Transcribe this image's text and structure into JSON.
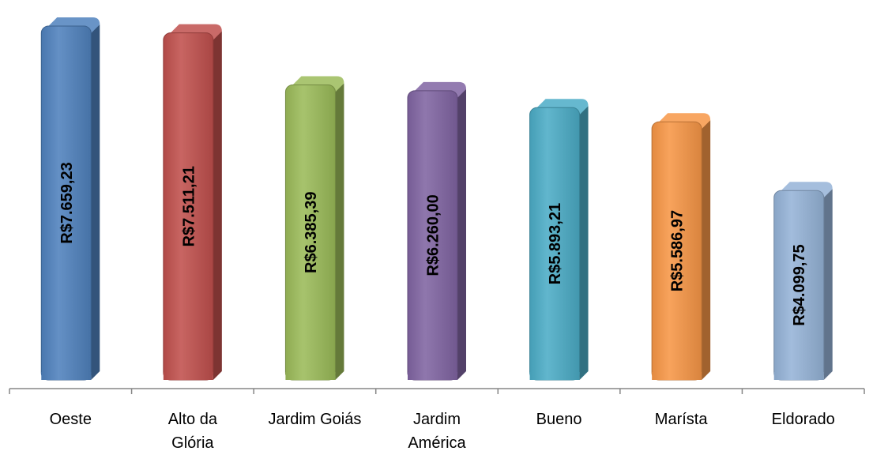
{
  "chart_data": {
    "type": "bar",
    "title": "",
    "xlabel": "",
    "ylabel": "",
    "categories": [
      [
        "Oeste"
      ],
      [
        "Alto da",
        "Glória"
      ],
      [
        "Jardim Goiás"
      ],
      [
        "Jardim",
        "América"
      ],
      [
        "Bueno"
      ],
      [
        "Marísta"
      ],
      [
        "Eldorado"
      ]
    ],
    "values": [
      7659.23,
      7511.21,
      6385.39,
      6260.0,
      5893.21,
      5586.97,
      4099.75
    ],
    "value_labels": [
      "R$7.659,23",
      "R$7.511,21",
      "R$6.385,39",
      "R$6.260,00",
      "R$5.893,21",
      "R$5.586,97",
      "R$4.099,75"
    ],
    "colors": [
      "#4f81bd",
      "#c0504d",
      "#9bbb59",
      "#8064a2",
      "#4bacc6",
      "#f79646",
      "#95b3d7"
    ],
    "ylim": [
      0,
      8000
    ],
    "grid": false,
    "legend": "none",
    "style": "3d-cylinder-bars"
  }
}
